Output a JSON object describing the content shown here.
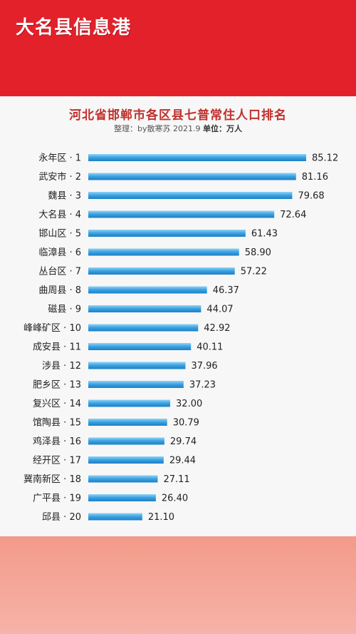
{
  "brand": {
    "name": "大名县信息港"
  },
  "chart_data": {
    "type": "bar",
    "orientation": "horizontal",
    "title": "河北省邯郸市各区县七普常住人口排名",
    "credit": "整理：by散寒苏  2021.9",
    "unit_label": "单位：",
    "unit": "万人",
    "bar_color": "#3aa0e0",
    "categories": [
      "永年区 · 1",
      "武安市 · 2",
      "魏县 · 3",
      "大名县 · 4",
      "邯山区 · 5",
      "临漳县 · 6",
      "丛台区 · 7",
      "曲周县 · 8",
      "磁县 · 9",
      "峰峰矿区 · 10",
      "成安县 · 11",
      "涉县 · 12",
      "肥乡区 · 13",
      "复兴区 · 14",
      "馆陶县 · 15",
      "鸡泽县 · 16",
      "经开区 · 17",
      "冀南新区 · 18",
      "广平县 · 19",
      "邱县 · 20"
    ],
    "values": [
      85.12,
      81.16,
      79.68,
      72.64,
      61.43,
      58.9,
      57.22,
      46.37,
      44.07,
      42.92,
      40.11,
      37.96,
      37.23,
      32.0,
      30.79,
      29.74,
      29.44,
      27.11,
      26.4,
      21.1
    ],
    "value_labels": [
      "85.12",
      "81.16",
      "79.68",
      "72.64",
      "61.43",
      "58.90",
      "57.22",
      "46.37",
      "44.07",
      "42.92",
      "40.11",
      "37.96",
      "37.23",
      "32.00",
      "30.79",
      "29.74",
      "29.44",
      "27.11",
      "26.40",
      "21.10"
    ],
    "xlim": [
      0,
      85.12
    ]
  }
}
